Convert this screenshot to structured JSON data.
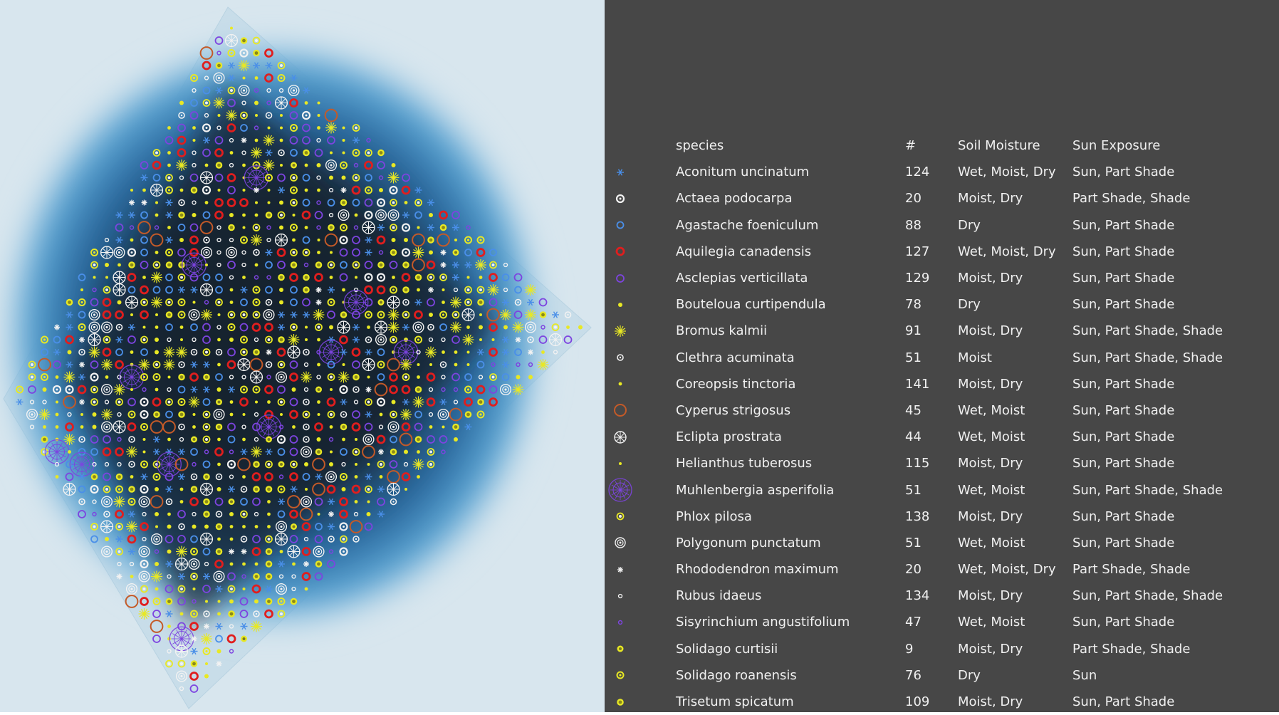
{
  "legend": {
    "headers": {
      "icon": "",
      "species": "species",
      "count": "#",
      "soil": "Soil Moisture",
      "sun": "Sun Exposure"
    },
    "rows": [
      {
        "icon": "blue-asterisk-icon",
        "species": "Aconitum uncinatum",
        "count": "124",
        "soil": "Wet, Moist, Dry",
        "sun": "Sun, Part Shade"
      },
      {
        "icon": "white-ring-icon",
        "species": "Actaea podocarpa",
        "count": "20",
        "soil": "Moist, Dry",
        "sun": "Part Shade, Shade"
      },
      {
        "icon": "blue-ring-icon",
        "species": "Agastache foeniculum",
        "count": "88",
        "soil": "Dry",
        "sun": "Sun, Part Shade"
      },
      {
        "icon": "red-ring-icon",
        "species": "Aquilegia canadensis",
        "count": "127",
        "soil": "Wet, Moist, Dry",
        "sun": "Sun, Part Shade"
      },
      {
        "icon": "purple-ring-icon",
        "species": "Asclepias verticillata",
        "count": "129",
        "soil": "Moist, Dry",
        "sun": "Sun, Part Shade"
      },
      {
        "icon": "yellow-dot-icon",
        "species": "Bouteloua curtipendula",
        "count": "78",
        "soil": "Dry",
        "sun": "Sun, Part Shade"
      },
      {
        "icon": "yellow-starburst-icon",
        "species": "Bromus kalmii",
        "count": "91",
        "soil": "Moist, Dry",
        "sun": "Sun, Part Shade, Shade"
      },
      {
        "icon": "white-small-ring-icon",
        "species": "Clethra acuminata",
        "count": "51",
        "soil": "Moist",
        "sun": "Sun, Part Shade, Shade"
      },
      {
        "icon": "yellow-small-dot-icon",
        "species": "Coreopsis tinctoria",
        "count": "141",
        "soil": "Moist, Dry",
        "sun": "Sun, Part Shade"
      },
      {
        "icon": "orange-ring-icon",
        "species": "Cyperus strigosus",
        "count": "45",
        "soil": "Wet, Moist",
        "sun": "Sun, Part Shade"
      },
      {
        "icon": "white-flower-icon",
        "species": "Eclipta prostrata",
        "count": "44",
        "soil": "Wet, Moist",
        "sun": "Sun, Part Shade"
      },
      {
        "icon": "yellow-tiny-dot-icon",
        "species": "Helianthus tuberosus",
        "count": "115",
        "soil": "Moist, Dry",
        "sun": "Sun, Part Shade"
      },
      {
        "icon": "purple-large-flower-icon",
        "species": "Muhlenbergia asperifolia",
        "count": "51",
        "soil": "Wet, Moist",
        "sun": "Sun, Part Shade, Shade"
      },
      {
        "icon": "yellow-white-ring-icon",
        "species": "Phlox pilosa",
        "count": "138",
        "soil": "Moist, Dry",
        "sun": "Sun, Part Shade"
      },
      {
        "icon": "white-double-ring-icon",
        "species": "Polygonum punctatum",
        "count": "51",
        "soil": "Wet, Moist",
        "sun": "Sun, Part Shade"
      },
      {
        "icon": "white-star-icon",
        "species": "Rhododendron maximum",
        "count": "20",
        "soil": "Wet, Moist, Dry",
        "sun": "Part Shade, Shade"
      },
      {
        "icon": "white-tiny-ring-icon",
        "species": "Rubus idaeus",
        "count": "134",
        "soil": "Moist, Dry",
        "sun": "Sun, Part Shade, Shade"
      },
      {
        "icon": "purple-dot-icon",
        "species": "Sisyrinchium angustifolium",
        "count": "47",
        "soil": "Wet, Moist",
        "sun": "Sun, Part Shade"
      },
      {
        "icon": "yellow-rosette-icon",
        "species": "Solidago curtisii",
        "count": "9",
        "soil": "Moist, Dry",
        "sun": "Part Shade, Shade"
      },
      {
        "icon": "yellow-ring-dot-icon",
        "species": "Solidago roanensis",
        "count": "76",
        "soil": "Dry",
        "sun": "Sun"
      },
      {
        "icon": "yellow-spiked-ring-icon",
        "species": "Trisetum spicatum",
        "count": "109",
        "soil": "Moist, Dry",
        "sun": "Sun, Part Shade"
      }
    ]
  },
  "colors": {
    "canvas_background": "#d8e6ee",
    "legend_background": "#474747",
    "text": "#f0f0f0",
    "plot_dark": "#1b2a38",
    "plot_glow": "#2f7fbf",
    "blue": "#4a8fe8",
    "white": "#f2f2f2",
    "red": "#e01e1e",
    "purple": "#7d44e0",
    "yellow": "#e8e824",
    "orange": "#c45a28"
  }
}
